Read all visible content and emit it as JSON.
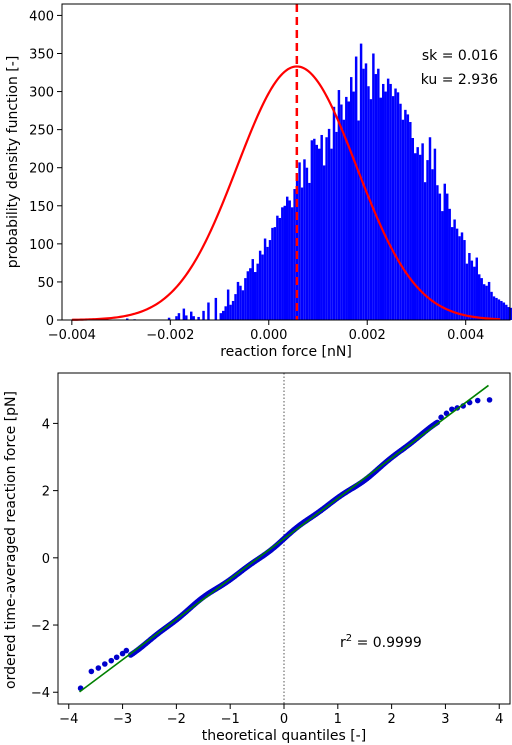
{
  "chart_data": [
    {
      "type": "bar",
      "title": "",
      "xlabel": "reaction force [nN]",
      "ylabel": "probability density function [-]",
      "xlim": [
        -0.0042,
        0.0049
      ],
      "ylim": [
        0,
        415
      ],
      "xticks": [
        -0.004,
        -0.002,
        0.0,
        0.002,
        0.004
      ],
      "xtick_labels": [
        "−0.004",
        "−0.002",
        "0.000",
        "0.002",
        "0.004"
      ],
      "yticks": [
        0,
        50,
        100,
        150,
        200,
        250,
        300,
        350,
        400
      ],
      "ytick_labels": [
        "0",
        "50",
        "100",
        "150",
        "200",
        "250",
        "300",
        "350",
        "400"
      ],
      "bar_color": "#0000ff",
      "histogram": {
        "bin_start": -0.0029,
        "bin_width": 5e-05,
        "densities": [
          2,
          0,
          0,
          1,
          0,
          0,
          0,
          0,
          0,
          0,
          0,
          0,
          0,
          0,
          0,
          0,
          0,
          3,
          0,
          0,
          5,
          9,
          0,
          15,
          6,
          0,
          11,
          5,
          0,
          4,
          0,
          12,
          0,
          23,
          0,
          0,
          29,
          0,
          9,
          12,
          18,
          40,
          20,
          25,
          34,
          50,
          45,
          39,
          55,
          64,
          68,
          80,
          63,
          74,
          91,
          86,
          107,
          96,
          105,
          121,
          122,
          137,
          134,
          148,
          150,
          162,
          157,
          148,
          172,
          183,
          207,
          174,
          211,
          200,
          180,
          236,
          238,
          230,
          225,
          243,
          203,
          240,
          251,
          225,
          280,
          247,
          302,
          283,
          263,
          293,
          287,
          319,
          300,
          346,
          262,
          363,
          330,
          337,
          307,
          290,
          350,
          323,
          330,
          292,
          310,
          300,
          317,
          310,
          294,
          304,
          299,
          284,
          263,
          276,
          270,
          260,
          239,
          219,
          227,
          217,
          232,
          181,
          210,
          240,
          198,
          225,
          177,
          166,
          143,
          179,
          166,
          146,
          122,
          132,
          120,
          110,
          115,
          105,
          74,
          88,
          78,
          70,
          82,
          60,
          55,
          47,
          45,
          50,
          37,
          31,
          29,
          27,
          25,
          23,
          20,
          17,
          16,
          25,
          14,
          12,
          11,
          10,
          8,
          12,
          7,
          6,
          6,
          7,
          5,
          4,
          0,
          6,
          0,
          4,
          0,
          3,
          0,
          2
        ]
      },
      "fit_curve": {
        "color": "#ff0000",
        "mean": 0.00057,
        "std": 0.00121,
        "peak": 333
      },
      "mean_line": {
        "x": 0.00057,
        "color": "#ff0000",
        "style": "dashed"
      },
      "annotations": {
        "sk": "sk = 0.016",
        "ku": "ku = 2.936"
      }
    },
    {
      "type": "scatter",
      "title": "",
      "xlabel": "theoretical quantiles [-]",
      "ylabel": "ordered time-averaged reaction force  [pN]",
      "xlim": [
        -4.2,
        4.2
      ],
      "ylim": [
        -4.35,
        5.5
      ],
      "xticks": [
        -4,
        -3,
        -2,
        -1,
        0,
        1,
        2,
        3,
        4
      ],
      "xtick_labels": [
        "−4",
        "−3",
        "−2",
        "−1",
        "0",
        "1",
        "2",
        "3",
        "4"
      ],
      "yticks": [
        -4,
        -2,
        0,
        2,
        4
      ],
      "ytick_labels": [
        "−4",
        "−2",
        "0",
        "2",
        "4"
      ],
      "point_color": "#0000cc",
      "points_dense": {
        "x_range": [
          -2.85,
          2.85
        ],
        "slope": 1.2,
        "intercept": 0.57
      },
      "points_tail": [
        [
          -3.78,
          -3.88
        ],
        [
          -3.58,
          -3.38
        ],
        [
          -3.45,
          -3.28
        ],
        [
          -3.33,
          -3.16
        ],
        [
          -3.21,
          -3.06
        ],
        [
          -3.11,
          -2.96
        ],
        [
          -3.0,
          -2.85
        ],
        [
          -2.93,
          -2.76
        ],
        [
          2.92,
          4.18
        ],
        [
          3.02,
          4.3
        ],
        [
          3.12,
          4.42
        ],
        [
          3.22,
          4.46
        ],
        [
          3.33,
          4.52
        ],
        [
          3.45,
          4.62
        ],
        [
          3.6,
          4.68
        ],
        [
          3.82,
          4.7
        ]
      ],
      "fit_line": {
        "x": [
          -3.8,
          3.8
        ],
        "y": [
          -3.99,
          5.13
        ],
        "color": "#008000"
      },
      "zero_line": {
        "x": 0,
        "style": "dotted",
        "color": "#555555"
      },
      "annotation": {
        "r2_base": "r",
        "r2_sup": "2",
        "r2_value": " = 0.9999"
      }
    }
  ]
}
